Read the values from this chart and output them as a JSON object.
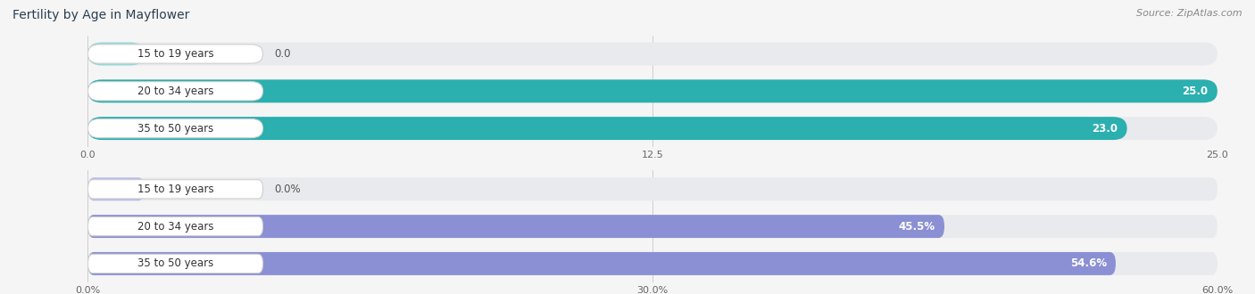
{
  "title": "Fertility by Age in Mayflower",
  "source": "Source: ZipAtlas.com",
  "top_chart": {
    "categories": [
      "15 to 19 years",
      "20 to 34 years",
      "35 to 50 years"
    ],
    "values": [
      0.0,
      25.0,
      23.0
    ],
    "max_val": 25.0,
    "xlim": [
      0,
      25.0
    ],
    "xticks": [
      0.0,
      12.5,
      25.0
    ],
    "xtick_labels": [
      "0.0",
      "12.5",
      "25.0"
    ],
    "bar_color": "#2BAFAF",
    "bar_light_color": "#96D8D8",
    "value_labels": [
      "0.0",
      "25.0",
      "23.0"
    ],
    "val_inside_threshold": 0.5
  },
  "bottom_chart": {
    "categories": [
      "15 to 19 years",
      "20 to 34 years",
      "35 to 50 years"
    ],
    "values": [
      0.0,
      45.5,
      54.6
    ],
    "max_val": 60.0,
    "xlim": [
      0,
      60.0
    ],
    "xticks": [
      0.0,
      30.0,
      60.0
    ],
    "xtick_labels": [
      "0.0%",
      "30.0%",
      "60.0%"
    ],
    "bar_color": "#8B8FD4",
    "bar_light_color": "#B8BBEA",
    "value_labels": [
      "0.0%",
      "45.5%",
      "54.6%"
    ],
    "val_inside_threshold": 0.5
  },
  "fig_bg_color": "#f5f5f5",
  "chart_bg_color": "#f5f5f5",
  "bar_bg_color": "#e8eaed",
  "title_fontsize": 10,
  "source_fontsize": 8,
  "label_fontsize": 8.5,
  "tick_fontsize": 8
}
